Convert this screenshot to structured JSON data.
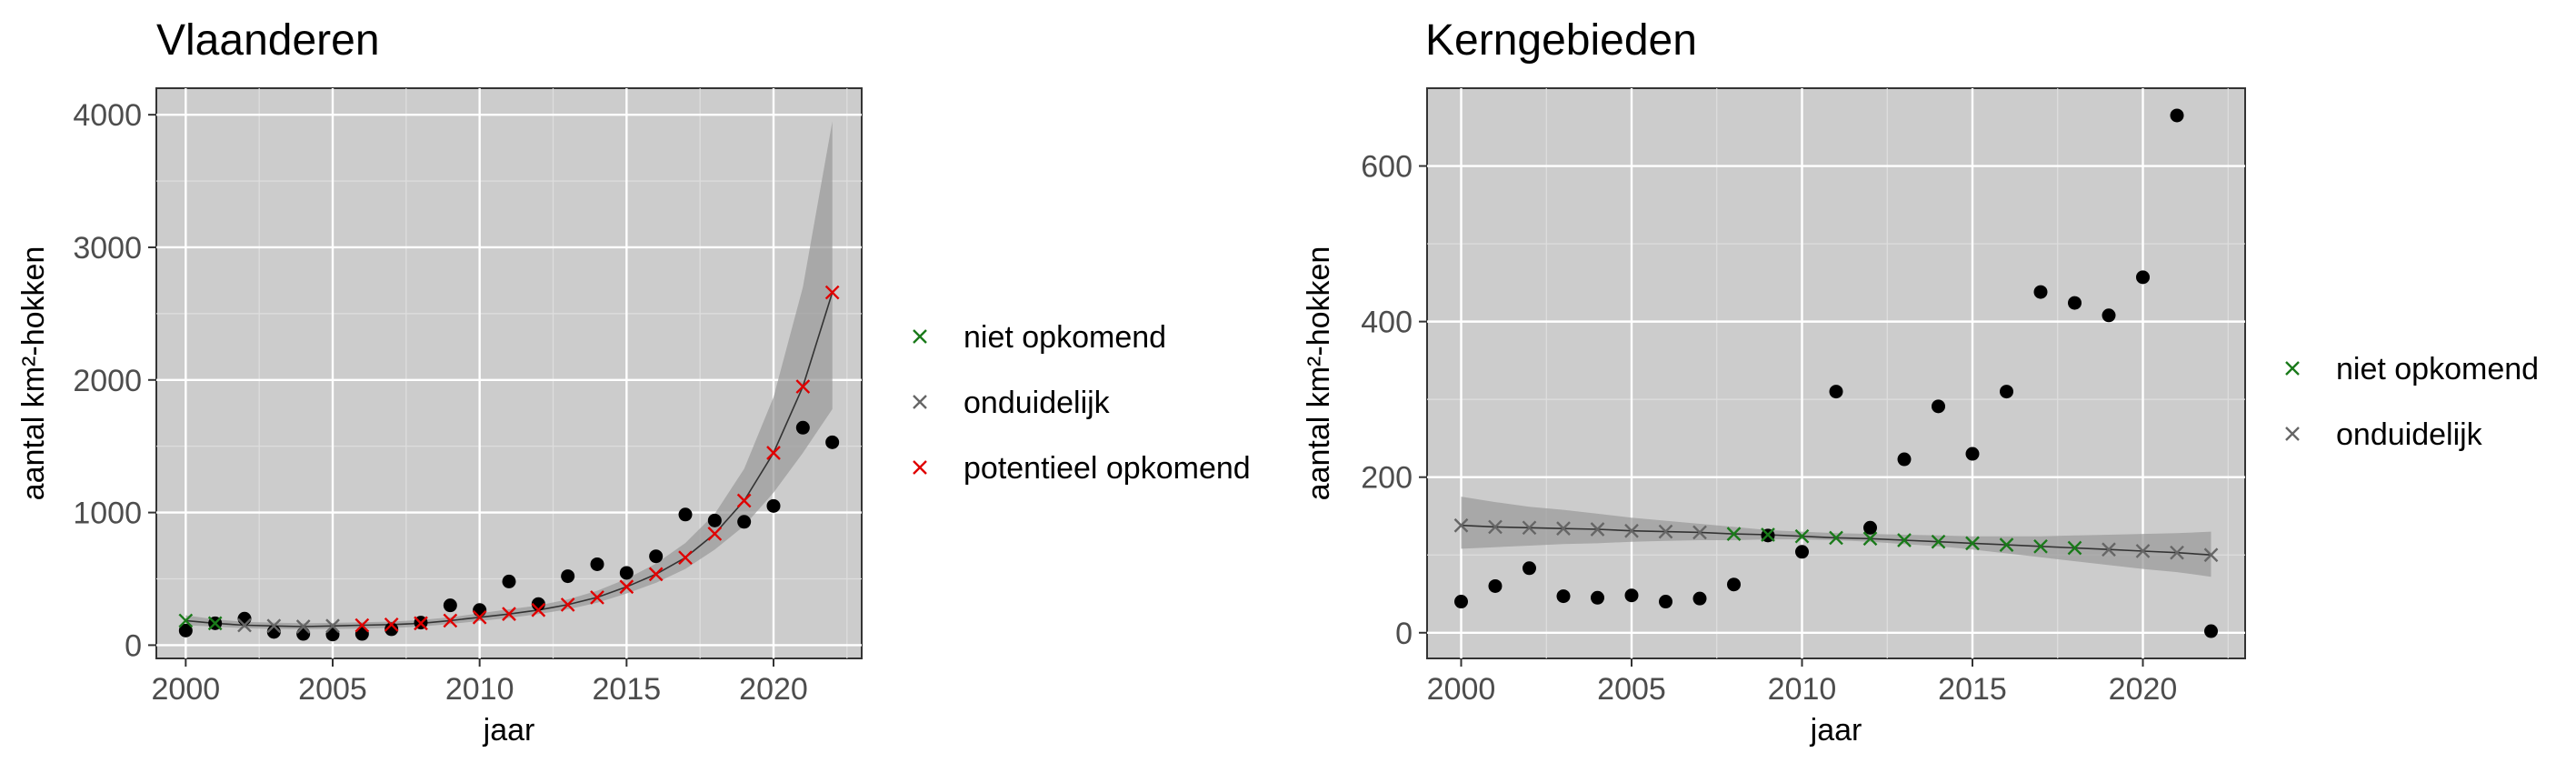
{
  "chart_data": [
    {
      "type": "scatter",
      "title": "Vlaanderen",
      "xlabel": "jaar",
      "ylabel": "aantal km²-hokken",
      "xlim": [
        1999.0,
        2023.0
      ],
      "ylim": [
        -100,
        4200
      ],
      "xticks": [
        2000,
        2005,
        2010,
        2015,
        2020
      ],
      "yticks": [
        0,
        1000,
        2000,
        3000,
        4000
      ],
      "grid": true,
      "legend_position": "right",
      "observed": {
        "x": [
          2000,
          2001,
          2002,
          2003,
          2004,
          2005,
          2006,
          2007,
          2008,
          2009,
          2010,
          2011,
          2012,
          2013,
          2014,
          2015,
          2016,
          2017,
          2018,
          2019,
          2020,
          2021,
          2022
        ],
        "y": [
          110,
          165,
          200,
          100,
          85,
          80,
          85,
          120,
          170,
          300,
          265,
          480,
          310,
          520,
          610,
          545,
          670,
          985,
          940,
          930,
          1050,
          1640,
          1530
        ]
      },
      "trend": {
        "x": [
          2000,
          2001,
          2002,
          2003,
          2004,
          2005,
          2006,
          2007,
          2008,
          2009,
          2010,
          2011,
          2012,
          2013,
          2014,
          2015,
          2016,
          2017,
          2018,
          2019,
          2020,
          2021,
          2022
        ],
        "y": [
          185,
          165,
          150,
          145,
          140,
          145,
          150,
          155,
          165,
          185,
          210,
          235,
          265,
          305,
          360,
          440,
          535,
          660,
          840,
          1090,
          1450,
          1950,
          2660
        ],
        "lower": [
          150,
          140,
          128,
          122,
          120,
          122,
          125,
          130,
          140,
          160,
          182,
          205,
          235,
          270,
          320,
          390,
          470,
          575,
          720,
          900,
          1150,
          1450,
          1780
        ],
        "upper": [
          225,
          195,
          175,
          170,
          165,
          168,
          172,
          178,
          190,
          210,
          240,
          270,
          300,
          345,
          410,
          500,
          615,
          770,
          990,
          1330,
          1870,
          2700,
          3950
        ],
        "class": [
          "niet opkomend",
          "niet opkomend",
          "onduidelijk",
          "onduidelijk",
          "onduidelijk",
          "onduidelijk",
          "potentieel opkomend",
          "potentieel opkomend",
          "potentieel opkomend",
          "potentieel opkomend",
          "potentieel opkomend",
          "potentieel opkomend",
          "potentieel opkomend",
          "potentieel opkomend",
          "potentieel opkomend",
          "potentieel opkomend",
          "potentieel opkomend",
          "potentieel opkomend",
          "potentieel opkomend",
          "potentieel opkomend",
          "potentieel opkomend",
          "potentieel opkomend",
          "potentieel opkomend"
        ]
      },
      "legend": [
        {
          "label": "niet opkomend",
          "color": "#1a7a1a"
        },
        {
          "label": "onduidelijk",
          "color": "#666666"
        },
        {
          "label": "potentieel opkomend",
          "color": "#e00000"
        }
      ]
    },
    {
      "type": "scatter",
      "title": "Kerngebieden",
      "xlabel": "jaar",
      "ylabel": "aantal km²-hokken",
      "xlim": [
        1999.0,
        2023.0
      ],
      "ylim": [
        -33,
        700
      ],
      "xticks": [
        2000,
        2005,
        2010,
        2015,
        2020
      ],
      "yticks": [
        0,
        200,
        400,
        600
      ],
      "grid": true,
      "legend_position": "right",
      "observed": {
        "x": [
          2000,
          2001,
          2002,
          2003,
          2004,
          2005,
          2006,
          2007,
          2008,
          2009,
          2010,
          2011,
          2012,
          2013,
          2014,
          2015,
          2016,
          2017,
          2018,
          2019,
          2020,
          2021,
          2022
        ],
        "y": [
          40,
          60,
          83,
          47,
          45,
          48,
          40,
          44,
          62,
          125,
          104,
          310,
          135,
          223,
          291,
          230,
          310,
          438,
          424,
          408,
          457,
          665,
          2
        ]
      },
      "trend": {
        "x": [
          2000,
          2001,
          2002,
          2003,
          2004,
          2005,
          2006,
          2007,
          2008,
          2009,
          2010,
          2011,
          2012,
          2013,
          2014,
          2015,
          2016,
          2017,
          2018,
          2019,
          2020,
          2021,
          2022
        ],
        "y": [
          138,
          136,
          135,
          134,
          133,
          131,
          130,
          129,
          127,
          126,
          124,
          122,
          121,
          119,
          117,
          115,
          113,
          111,
          109,
          107,
          105,
          103,
          100
        ],
        "lower": [
          108,
          110,
          112,
          114,
          115,
          117,
          118,
          119,
          119,
          120,
          120,
          119,
          117,
          114,
          111,
          107,
          102,
          97,
          92,
          87,
          82,
          78,
          72
        ],
        "upper": [
          175,
          168,
          162,
          158,
          153,
          148,
          144,
          140,
          136,
          132,
          130,
          128,
          127,
          126,
          125,
          124,
          124,
          124,
          125,
          126,
          127,
          128,
          130
        ],
        "class": [
          "onduidelijk",
          "onduidelijk",
          "onduidelijk",
          "onduidelijk",
          "onduidelijk",
          "onduidelijk",
          "onduidelijk",
          "onduidelijk",
          "niet opkomend",
          "niet opkomend",
          "niet opkomend",
          "niet opkomend",
          "niet opkomend",
          "niet opkomend",
          "niet opkomend",
          "niet opkomend",
          "niet opkomend",
          "niet opkomend",
          "niet opkomend",
          "onduidelijk",
          "onduidelijk",
          "onduidelijk",
          "onduidelijk"
        ]
      },
      "legend": [
        {
          "label": "niet opkomend",
          "color": "#1a7a1a"
        },
        {
          "label": "onduidelijk",
          "color": "#666666"
        }
      ]
    }
  ]
}
